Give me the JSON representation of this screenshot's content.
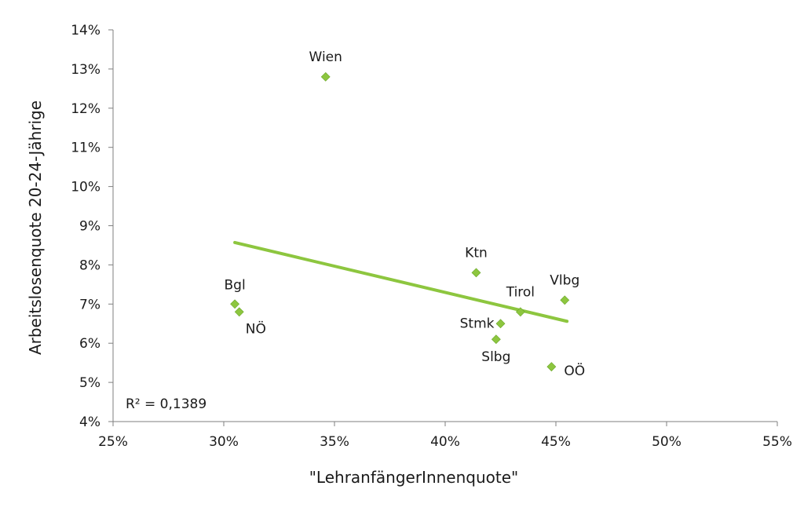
{
  "chart_data": {
    "type": "scatter",
    "title": "",
    "xlabel": "\"LehranfängerInnenquote\"",
    "ylabel": "Arbeitslosenquote 20-24-Jährige",
    "xlim": [
      0.25,
      0.55
    ],
    "ylim": [
      0.04,
      0.14
    ],
    "x_ticks": [
      0.25,
      0.3,
      0.35,
      0.4,
      0.45,
      0.5,
      0.55
    ],
    "x_tick_labels": [
      "25%",
      "30%",
      "35%",
      "40%",
      "45%",
      "50%",
      "55%"
    ],
    "y_ticks": [
      0.04,
      0.05,
      0.06,
      0.07,
      0.08,
      0.09,
      0.1,
      0.11,
      0.12,
      0.13,
      0.14
    ],
    "y_tick_labels": [
      "4%",
      "5%",
      "6%",
      "7%",
      "8%",
      "9%",
      "10%",
      "11%",
      "12%",
      "13%",
      "14%"
    ],
    "grid": false,
    "marker_color": "#8dc63f",
    "trendline_color": "#8dc63f",
    "points": [
      {
        "label": "Wien",
        "x": 0.346,
        "y": 0.128
      },
      {
        "label": "Bgl",
        "x": 0.305,
        "y": 0.07
      },
      {
        "label": "NÖ",
        "x": 0.307,
        "y": 0.068
      },
      {
        "label": "Ktn",
        "x": 0.414,
        "y": 0.078
      },
      {
        "label": "Tirol",
        "x": 0.434,
        "y": 0.068
      },
      {
        "label": "Vlbg",
        "x": 0.454,
        "y": 0.071
      },
      {
        "label": "Stmk",
        "x": 0.425,
        "y": 0.065
      },
      {
        "label": "Slbg",
        "x": 0.423,
        "y": 0.061
      },
      {
        "label": "OÖ",
        "x": 0.448,
        "y": 0.054
      }
    ],
    "trendline": {
      "type": "linear",
      "x": [
        0.305,
        0.455
      ],
      "y": [
        0.0857,
        0.0656
      ],
      "r_squared_label": "R² = 0,1389"
    }
  }
}
